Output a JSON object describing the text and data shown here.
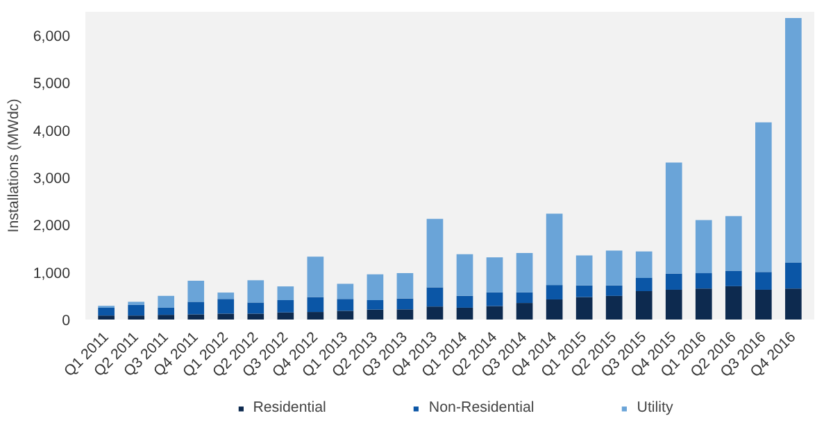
{
  "chart_data": {
    "type": "bar",
    "stacked": true,
    "ylabel": "Installations (MWdc)",
    "categories": [
      "Q1 2011",
      "Q2 2011",
      "Q3 2011",
      "Q4 2011",
      "Q1 2012",
      "Q2 2012",
      "Q3 2012",
      "Q4 2012",
      "Q1 2013",
      "Q2 2013",
      "Q3 2013",
      "Q4 2013",
      "Q1 2014",
      "Q2 2014",
      "Q3 2014",
      "Q4 2014",
      "Q1 2015",
      "Q2 2015",
      "Q3 2015",
      "Q4 2015",
      "Q1 2016",
      "Q2 2016",
      "Q3 2016",
      "Q4 2016"
    ],
    "series": [
      {
        "name": "Residential",
        "color": "#0d2a4f",
        "values": [
          85,
          85,
          100,
          110,
          125,
          125,
          150,
          160,
          185,
          210,
          215,
          275,
          250,
          285,
          350,
          425,
          475,
          500,
          600,
          630,
          655,
          705,
          630,
          655
        ]
      },
      {
        "name": "Non-Residential",
        "color": "#0b56a6",
        "values": [
          165,
          225,
          150,
          265,
          310,
          235,
          260,
          315,
          250,
          200,
          230,
          405,
          250,
          290,
          225,
          305,
          245,
          220,
          280,
          340,
          325,
          325,
          375,
          550
        ]
      },
      {
        "name": "Utility",
        "color": "#6aa4d8",
        "values": [
          40,
          65,
          250,
          445,
          135,
          470,
          290,
          855,
          320,
          545,
          535,
          1445,
          880,
          740,
          830,
          1505,
          635,
          735,
          560,
          2345,
          1120,
          1155,
          3160,
          5165
        ]
      }
    ],
    "ylim": [
      0,
      6500
    ],
    "yticks": [
      {
        "value": 0,
        "label": "0"
      },
      {
        "value": 1000,
        "label": "1,000"
      },
      {
        "value": 2000,
        "label": "2,000"
      },
      {
        "value": 3000,
        "label": "3,000"
      },
      {
        "value": 4000,
        "label": "4,000"
      },
      {
        "value": 5000,
        "label": "5,000"
      },
      {
        "value": 6000,
        "label": "6,000"
      }
    ],
    "grid": false,
    "legend": "bottom"
  }
}
